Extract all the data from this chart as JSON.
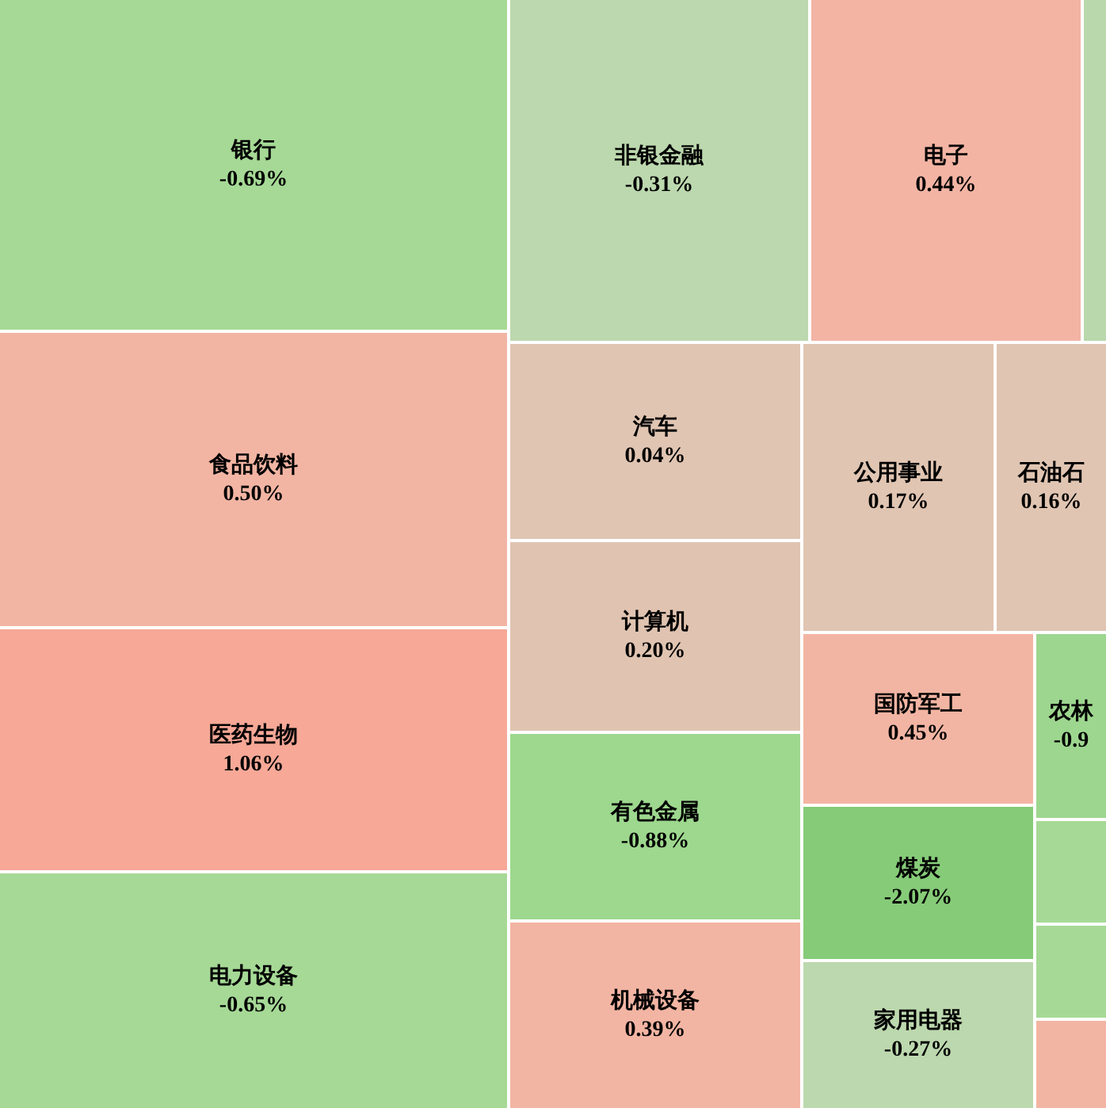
{
  "chart_data": {
    "type": "other",
    "categories": [
      "银行",
      "食品饮料",
      "医药生物",
      "电力设备",
      "非银金融",
      "电子",
      "汽车",
      "计算机",
      "有色金属",
      "机械设备",
      "公用事业",
      "石油石",
      "国防军工",
      "煤炭",
      "家用电器",
      "农林"
    ],
    "values": [
      -0.69,
      0.5,
      1.06,
      -0.65,
      -0.31,
      0.44,
      0.04,
      0.2,
      -0.88,
      0.39,
      0.17,
      0.16,
      0.45,
      -2.07,
      -0.27,
      -0.9
    ],
    "value_labels": [
      "-0.69%",
      "0.50%",
      "1.06%",
      "-0.65%",
      "-0.31%",
      "0.44%",
      "0.04%",
      "0.20%",
      "-0.88%",
      "0.39%",
      "0.17%",
      "0.16%",
      "0.45%",
      "-2.07%",
      "-0.27%",
      "-0.9"
    ],
    "colors": [
      "#a6d996",
      "#f3b5a3",
      "#f7a897",
      "#a6d996",
      "#bcd8ae",
      "#f3b4a4",
      "#e0c5b2",
      "#e0c4b1",
      "#9dd88e",
      "#f3b5a3",
      "#e0c5b2",
      "#e0c5b2",
      "#f3b5a3",
      "#86cb78",
      "#bcd8ae",
      "#9dd68f"
    ]
  }
}
